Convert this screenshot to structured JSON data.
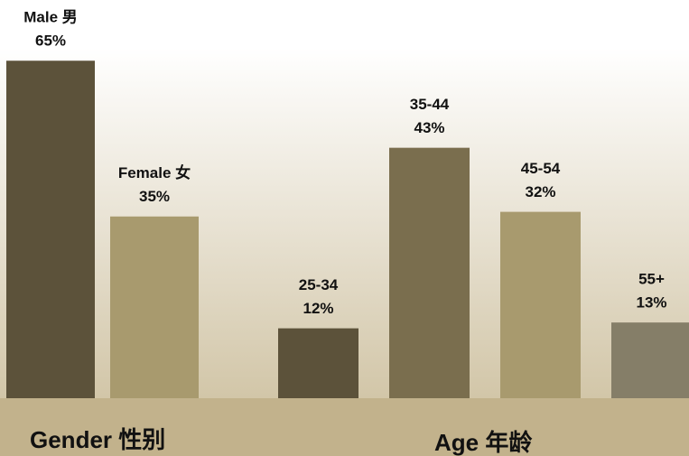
{
  "chart_data": [
    {
      "type": "bar",
      "title": "Gender 性别",
      "categories": [
        "Male 男",
        "Female 女"
      ],
      "values": [
        65,
        35
      ],
      "value_labels": [
        "65%",
        "35%"
      ],
      "colors": [
        "#5c523a",
        "#a89a6e"
      ]
    },
    {
      "type": "bar",
      "title": "Age 年龄",
      "categories": [
        "25-34",
        "35-44",
        "45-54",
        "55+"
      ],
      "values": [
        12,
        43,
        32,
        13
      ],
      "value_labels": [
        "12%",
        "43%",
        "32%",
        "13%"
      ],
      "colors": [
        "#5c523a",
        "#7a6e4e",
        "#a89a6e",
        "#857e68"
      ]
    }
  ]
}
